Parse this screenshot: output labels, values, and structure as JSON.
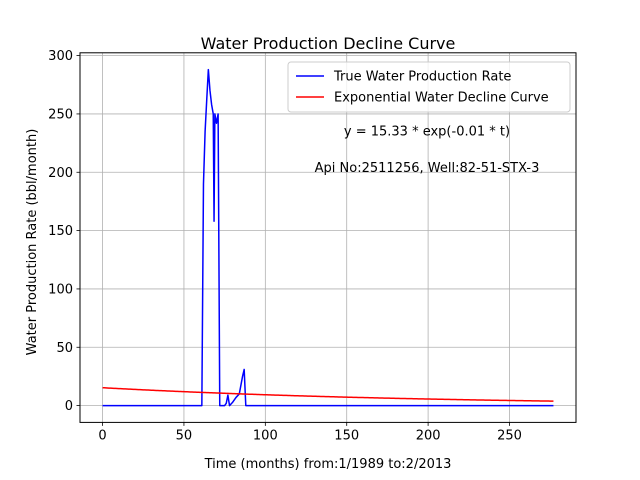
{
  "chart_data": {
    "type": "line",
    "title": "Water Production Decline Curve",
    "xlabel": "Time (months) from:1/1989 to:2/2013",
    "ylabel": "Water Production Rate (bbl/month)",
    "xlim": [
      -13.85,
      290.85
    ],
    "ylim": [
      -14.4,
      302.4
    ],
    "xticks": [
      0,
      50,
      100,
      150,
      200,
      250
    ],
    "yticks": [
      0,
      50,
      100,
      150,
      200,
      250,
      300
    ],
    "grid": true,
    "legend_position": "top-right",
    "annotations": [
      "y = 15.33 * exp(-0.01 * t)",
      "Api No:2511256, Well:82-51-STX-3"
    ],
    "series": [
      {
        "name": "True Water Production Rate",
        "color": "#0000ff",
        "points": [
          [
            0,
            0
          ],
          [
            61,
            0
          ],
          [
            62,
            190
          ],
          [
            63,
            235
          ],
          [
            64,
            262
          ],
          [
            65,
            288
          ],
          [
            66,
            270
          ],
          [
            67,
            258
          ],
          [
            68,
            250
          ],
          [
            68.5,
            158
          ],
          [
            69,
            250
          ],
          [
            70,
            242
          ],
          [
            71,
            250
          ],
          [
            72,
            0
          ],
          [
            75,
            0
          ],
          [
            76,
            2
          ],
          [
            77,
            9
          ],
          [
            78,
            0
          ],
          [
            80,
            3
          ],
          [
            82,
            7
          ],
          [
            84,
            10
          ],
          [
            86,
            25
          ],
          [
            87,
            31
          ],
          [
            88,
            0
          ],
          [
            277,
            0
          ]
        ]
      },
      {
        "name": "Exponential Water Decline Curve",
        "color": "#ff0000",
        "function": {
          "a": 15.33,
          "b": 0.005,
          "t_start": 0,
          "t_end": 277
        }
      }
    ]
  }
}
